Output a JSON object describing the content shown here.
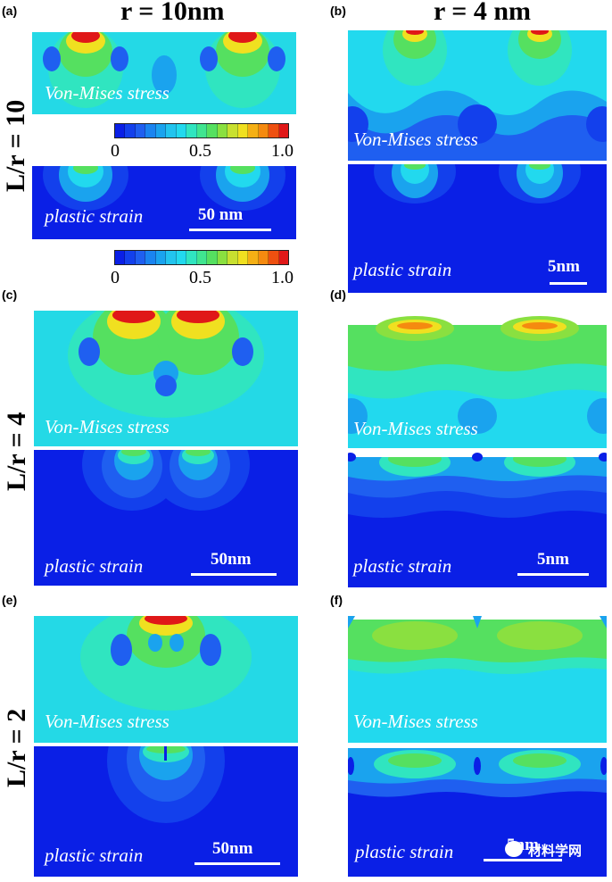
{
  "columns": {
    "left": "r = 10nm",
    "right": "r = 4 nm"
  },
  "rows": {
    "top": "L/r = 10",
    "middle": "L/r = 4",
    "bottom": "L/r = 2"
  },
  "panels": {
    "a": {
      "tag": "(a)",
      "stress_label": "Von-Mises stress",
      "strain_label": "plastic strain",
      "scale": "50 nm"
    },
    "b": {
      "tag": "(b)",
      "stress_label": "Von-Mises stress",
      "strain_label": "plastic strain",
      "scale": "5nm"
    },
    "c": {
      "tag": "(c)",
      "stress_label": "Von-Mises stress",
      "strain_label": "plastic strain",
      "scale": "50nm"
    },
    "d": {
      "tag": "(d)",
      "stress_label": "Von-Mises stress",
      "strain_label": "plastic strain",
      "scale": "5nm"
    },
    "e": {
      "tag": "(e)",
      "stress_label": "Von-Mises stress",
      "strain_label": "plastic strain",
      "scale": "50nm"
    },
    "f": {
      "tag": "(f)",
      "stress_label": "Von-Mises stress",
      "strain_label": "plastic strain",
      "scale": "5nm"
    }
  },
  "colorbar": {
    "ticks": [
      "0",
      "0.5",
      "1.0"
    ],
    "range": [
      0,
      1
    ]
  },
  "watermark": "材料学网",
  "colors": {
    "deep_blue": "#0a1fe6",
    "blue": "#1f5ff0",
    "light_blue": "#1aa3ee",
    "cyan": "#22d9ee",
    "teal": "#30e5c0",
    "green": "#55e060",
    "yellow": "#f0e020",
    "orange": "#f58a10",
    "red": "#e01818"
  }
}
